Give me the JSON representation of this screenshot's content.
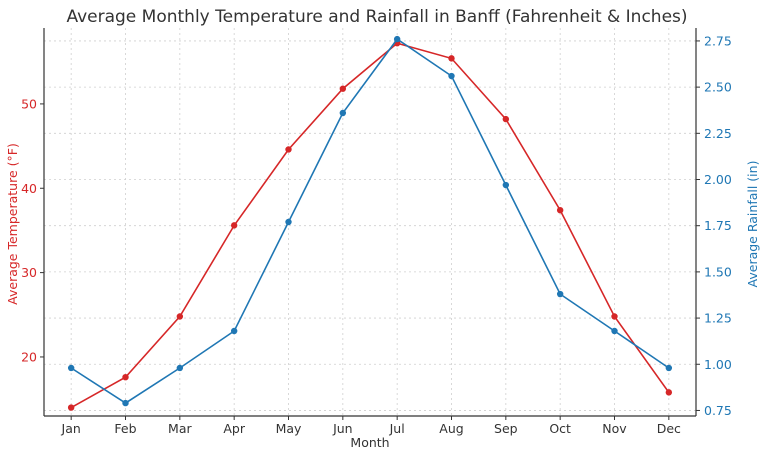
{
  "chart_data": {
    "type": "line",
    "title": "Average Monthly Temperature and Rainfall in Banff (Fahrenheit & Inches)",
    "xlabel": "Month",
    "ylabel_left": "Average Temperature (°F)",
    "ylabel_right": "Average Rainfall (in)",
    "categories": [
      "Jan",
      "Feb",
      "Mar",
      "Apr",
      "May",
      "Jun",
      "Jul",
      "Aug",
      "Sep",
      "Oct",
      "Nov",
      "Dec"
    ],
    "ylim_left": [
      13,
      59
    ],
    "ylim_right": [
      0.72,
      2.82
    ],
    "yticks_left": [
      20,
      30,
      40,
      50
    ],
    "yticks_right": [
      0.75,
      1.0,
      1.25,
      1.5,
      1.75,
      2.0,
      2.25,
      2.5,
      2.75
    ],
    "yticks_right_labels": [
      "0.75",
      "1.00",
      "1.25",
      "1.50",
      "1.75",
      "2.00",
      "2.25",
      "2.50",
      "2.75"
    ],
    "grid": true,
    "series": [
      {
        "axis": "left",
        "color": "#d62728",
        "values": [
          14.0,
          17.6,
          24.8,
          35.6,
          44.6,
          51.8,
          57.2,
          55.4,
          48.2,
          37.4,
          24.8,
          15.8
        ]
      },
      {
        "axis": "right",
        "color": "#1f77b4",
        "values": [
          0.98,
          0.79,
          0.98,
          1.18,
          1.77,
          2.36,
          2.76,
          2.56,
          1.97,
          1.38,
          1.18,
          0.98
        ]
      }
    ],
    "colors": {
      "left_axis": "#d62728",
      "right_axis": "#1f77b4",
      "text": "#333333",
      "axes": "#333333"
    }
  }
}
